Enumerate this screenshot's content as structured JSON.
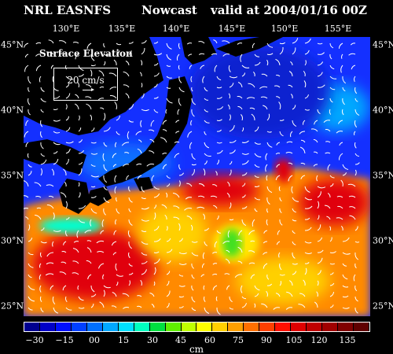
{
  "header": {
    "left": "NRL EASNFS",
    "middle": "Nowcast",
    "right": "valid at 2004/01/16 00Z"
  },
  "map": {
    "lon_labels": [
      "130°E",
      "135°E",
      "140°E",
      "145°E",
      "150°E",
      "155°E"
    ],
    "lat_labels": [
      "45°N",
      "40°N",
      "35°N",
      "30°N",
      "25°N"
    ],
    "colors": {
      "ocean_low": "#1428ff",
      "ocean_mid": "#0a6cff",
      "warm": "#ff6a00",
      "hot": "#e8000a",
      "land": "#000000"
    }
  },
  "legend": {
    "title": "Surface Elevation",
    "scale": "20 cm/s"
  },
  "colorbar": {
    "ticks": [
      "−30",
      "−15",
      "00",
      "15",
      "30",
      "45",
      "60",
      "75",
      "90",
      "105",
      "120",
      "135"
    ],
    "units": "cm",
    "colors": [
      "#000090",
      "#0000c8",
      "#0010ff",
      "#0040ff",
      "#0070ff",
      "#00a8ff",
      "#00e0ff",
      "#00ffc0",
      "#00e040",
      "#60f000",
      "#c0ff00",
      "#ffff00",
      "#ffd000",
      "#ffa000",
      "#ff7000",
      "#ff4000",
      "#ff1000",
      "#e00000",
      "#c00000",
      "#a00000",
      "#800000",
      "#600000"
    ]
  }
}
